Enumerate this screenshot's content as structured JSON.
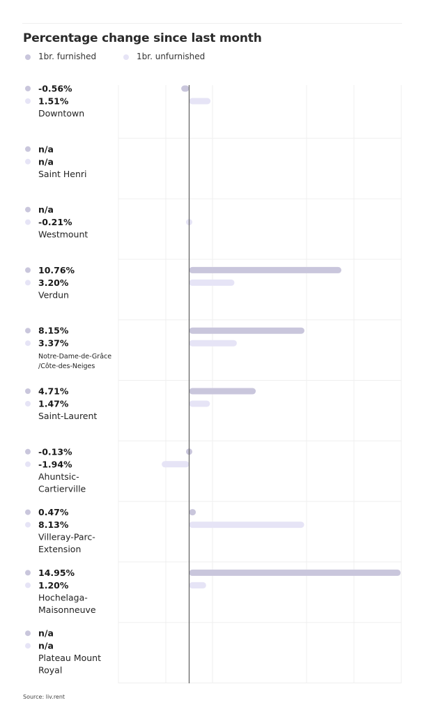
{
  "chart_data": {
    "type": "bar",
    "orientation": "horizontal",
    "title": "Percentage change since last month",
    "legend_position": "top-left",
    "grid": true,
    "colors": {
      "furnished": "#c9c6dc",
      "unfurnished": "#e6e4f6",
      "baseline": "#666666",
      "grid": "#efefef",
      "value_text": "#1a1a1a",
      "label_text": "#222222"
    },
    "xlim": [
      -5,
      15
    ],
    "categories": [
      {
        "label": "Downtown",
        "label_lines": [
          "Downtown"
        ]
      },
      {
        "label": "Saint Henri",
        "label_lines": [
          "Saint Henri"
        ]
      },
      {
        "label": "Westmount",
        "label_lines": [
          "Westmount"
        ]
      },
      {
        "label": "Verdun",
        "label_lines": [
          "Verdun"
        ]
      },
      {
        "label": "Notre-Dame-de-Grâce /Côte-des-Neiges",
        "label_lines": [
          "Notre-Dame-de-Grâce",
          "/Côte-des-Neiges"
        ]
      },
      {
        "label": "Saint-Laurent",
        "label_lines": [
          "Saint-Laurent"
        ]
      },
      {
        "label": "Ahuntsic-Cartierville",
        "label_lines": [
          "Ahuntsic-",
          "Cartierville"
        ]
      },
      {
        "label": "Villeray-Parc-Extension",
        "label_lines": [
          "Villeray-Parc-",
          "Extension"
        ]
      },
      {
        "label": "Hochelaga-Maisonneuve",
        "label_lines": [
          "Hochelaga-",
          "Maisonneuve"
        ]
      },
      {
        "label": "Plateau Mount Royal",
        "label_lines": [
          "Plateau Mount",
          "Royal"
        ]
      }
    ],
    "series": [
      {
        "name": "1br. furnished",
        "key": "furnished",
        "values": [
          -0.56,
          null,
          null,
          10.76,
          8.15,
          4.71,
          -0.13,
          0.47,
          14.95,
          null
        ],
        "labels": [
          "-0.56%",
          "n/a",
          "n/a",
          "10.76%",
          "8.15%",
          "4.71%",
          "-0.13%",
          "0.47%",
          "14.95%",
          "n/a"
        ]
      },
      {
        "name": "1br. unfurnished",
        "key": "unfurnished",
        "values": [
          1.51,
          null,
          -0.21,
          3.2,
          3.37,
          1.47,
          -1.94,
          8.13,
          1.2,
          null
        ],
        "labels": [
          "1.51%",
          "n/a",
          "-0.21%",
          "3.20%",
          "3.37%",
          "1.47%",
          "-1.94%",
          "8.13%",
          "1.20%",
          "n/a"
        ]
      }
    ],
    "source": "Source: liv.rent"
  }
}
